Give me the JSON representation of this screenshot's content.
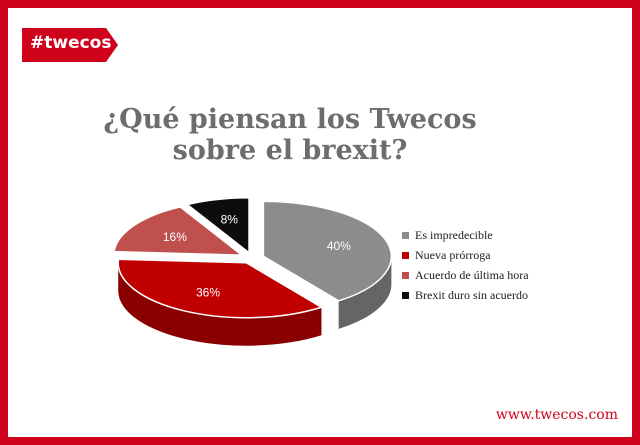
{
  "brand": {
    "tag": "#twecos",
    "url": "www.twecos.com",
    "color": "#d0021b"
  },
  "title_lines": [
    "¿Qué piensan los Twecos",
    "sobre el brexit?"
  ],
  "chart_data": {
    "type": "pie",
    "style": "3d-exploded",
    "categories": [
      "Es impredecible",
      "Nueva prórroga",
      "Acuerdo de última hora",
      "Brexit duro sin acuerdo"
    ],
    "values": [
      40,
      36,
      16,
      8
    ],
    "labels": [
      "40%",
      "36%",
      "16%",
      "8%"
    ],
    "colors": [
      "#8c8c8c",
      "#c00000",
      "#c0504d",
      "#0d0d0d"
    ],
    "legend_position": "right"
  }
}
